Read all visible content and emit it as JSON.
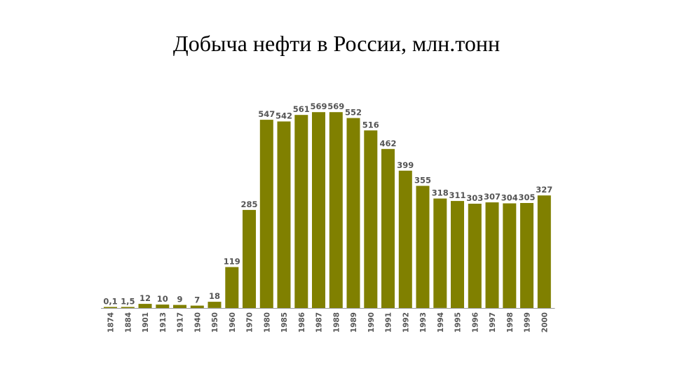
{
  "chart_data": {
    "type": "bar",
    "title": "Добыча нефти в России, млн.тонн",
    "xlabel": "",
    "ylabel": "",
    "categories": [
      "1874",
      "1884",
      "1901",
      "1913",
      "1917",
      "1940",
      "1950",
      "1960",
      "1970",
      "1980",
      "1985",
      "1986",
      "1987",
      "1988",
      "1989",
      "1990",
      "1991",
      "1992",
      "1993",
      "1994",
      "1995",
      "1996",
      "1997",
      "1998",
      "1999",
      "2000"
    ],
    "values": [
      0.1,
      1.5,
      12,
      10,
      9,
      7,
      18,
      119,
      285,
      547,
      542,
      561,
      569,
      569,
      552,
      516,
      462,
      399,
      355,
      318,
      311,
      303,
      307,
      304,
      305,
      327
    ],
    "value_labels": [
      "0,1",
      "1,5",
      "12",
      "10",
      "9",
      "7",
      "18",
      "119",
      "285",
      "547",
      "542",
      "561",
      "569",
      "569",
      "552",
      "516",
      "462",
      "399",
      "355",
      "318",
      "311",
      "303",
      "307",
      "304",
      "305",
      "327"
    ],
    "ylim": [
      0,
      600
    ],
    "grid": false,
    "legend": "none",
    "bar_color": "#808000"
  }
}
